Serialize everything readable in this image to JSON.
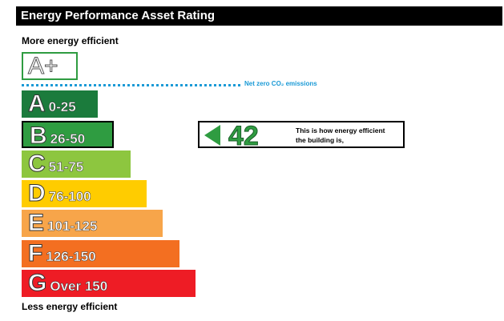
{
  "header": {
    "title": "Energy Performance Asset Rating"
  },
  "top_label": "More energy efficient",
  "a_plus": "A+",
  "net_zero": "Net zero CO₂ emissions",
  "bands": [
    {
      "letter": "A",
      "range": "0-25",
      "color": "#1b7b3c"
    },
    {
      "letter": "B",
      "range": "26-50",
      "color": "#2f9c41"
    },
    {
      "letter": "C",
      "range": "51-75",
      "color": "#8dc63f"
    },
    {
      "letter": "D",
      "range": "76-100",
      "color": "#ffcc00"
    },
    {
      "letter": "E",
      "range": "101-125",
      "color": "#f7a54a"
    },
    {
      "letter": "F",
      "range": "126-150",
      "color": "#f36f21"
    },
    {
      "letter": "G",
      "range": "Over 150",
      "color": "#ee1c25"
    }
  ],
  "rating": {
    "value": 42,
    "band": 1,
    "text": [
      "This is how energy efficient",
      "the building is,"
    ]
  },
  "bottom_label": "Less energy efficient"
}
